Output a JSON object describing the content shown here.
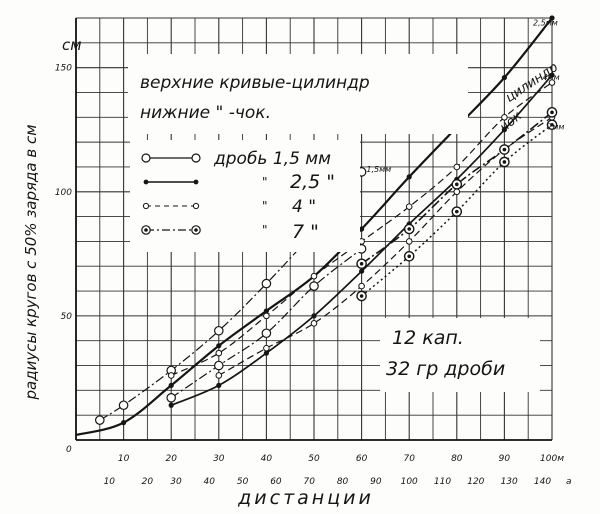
{
  "chart_data": {
    "type": "line",
    "title": "",
    "ylabel": "радиусы кругов с 50% заряда в см",
    "y_unit": "см",
    "xlabel": "дистанции",
    "x_unit_top": "м",
    "x_unit_bottom": "а",
    "origin_label": "0",
    "xlim": [
      0,
      100
    ],
    "ylim": [
      0,
      170
    ],
    "grid": true,
    "legend_position": "upper-left",
    "x_ticks_top": [
      10,
      20,
      30,
      40,
      50,
      60,
      70,
      80,
      90,
      100
    ],
    "x_ticks_top_labels": [
      "10",
      "20",
      "30",
      "40",
      "50",
      "60",
      "70",
      "80",
      "90",
      "100м"
    ],
    "x_ticks_bottom": [
      {
        "x": 7,
        "label": "10"
      },
      {
        "x": 15,
        "label": "20"
      },
      {
        "x": 21,
        "label": "30"
      },
      {
        "x": 28,
        "label": "40"
      },
      {
        "x": 35,
        "label": "50"
      },
      {
        "x": 42,
        "label": "60"
      },
      {
        "x": 49,
        "label": "70"
      },
      {
        "x": 56,
        "label": "80"
      },
      {
        "x": 63,
        "label": "90"
      },
      {
        "x": 70,
        "label": "100"
      },
      {
        "x": 77,
        "label": "110"
      },
      {
        "x": 84,
        "label": "120"
      },
      {
        "x": 91,
        "label": "130"
      },
      {
        "x": 98,
        "label": "140"
      }
    ],
    "y_ticks": [
      50,
      100,
      150
    ],
    "y_ticks_labels": [
      "50",
      "100",
      "150"
    ],
    "annotation_header": [
      "верхние кривые-цилиндр",
      "нижние      \"      -чок."
    ],
    "legend": [
      {
        "label": "дробь 1,5 мм",
        "marker": "open-circle"
      },
      {
        "label": "2,5 \"",
        "marker": "filled-dot",
        "prefix": "\""
      },
      {
        "label": "4 \"",
        "marker": "small-open-circle",
        "prefix": "\""
      },
      {
        "label": "7 \"",
        "marker": "double-circle",
        "prefix": "\""
      }
    ],
    "annotation_box": [
      "12 кап.",
      "32 гр дроби"
    ],
    "curve_labels": [
      {
        "text": "цилиндр",
        "x": 91,
        "y": 136,
        "rotate": -34
      },
      {
        "text": "чок",
        "x": 90,
        "y": 124,
        "rotate": -40
      },
      {
        "text": "2,5мм",
        "x": 96,
        "y": 167
      },
      {
        "text": "4мм",
        "x": 98,
        "y": 145
      },
      {
        "text": "7мм",
        "x": 99,
        "y": 125
      },
      {
        "text": "1,5мм",
        "x": 61,
        "y": 108
      }
    ],
    "series": [
      {
        "name": "2,5 мм цилиндр",
        "style": "solid-thick",
        "marker": "filled-dot",
        "x": [
          0,
          10,
          20,
          30,
          40,
          50,
          60,
          70,
          80,
          90,
          100
        ],
        "y": [
          2,
          7,
          22,
          38,
          52,
          66,
          85,
          106,
          126,
          146,
          170
        ]
      },
      {
        "name": "2,5 мм чок",
        "style": "solid",
        "marker": "filled-dot",
        "x": [
          20,
          30,
          40,
          50,
          60,
          70,
          80,
          90,
          100
        ],
        "y": [
          14,
          22,
          35,
          50,
          68,
          87,
          105,
          125,
          147
        ]
      },
      {
        "name": "1,5 мм цилиндр",
        "style": "dash-dot",
        "marker": "open-circle",
        "x": [
          5,
          10,
          20,
          30,
          40,
          50,
          60
        ],
        "y": [
          8,
          14,
          28,
          44,
          63,
          84,
          108
        ]
      },
      {
        "name": "1,5 мм чок",
        "style": "dash-dot",
        "marker": "open-circle",
        "x": [
          20,
          30,
          40,
          50,
          60
        ],
        "y": [
          17,
          30,
          43,
          62,
          77
        ]
      },
      {
        "name": "4 мм цилиндр",
        "style": "dashed",
        "marker": "small-open-circle",
        "x": [
          20,
          30,
          40,
          50,
          60,
          70,
          80,
          90,
          100
        ],
        "y": [
          26,
          35,
          50,
          66,
          80,
          94,
          110,
          130,
          144
        ]
      },
      {
        "name": "4 мм чок",
        "style": "dashed",
        "marker": "small-open-circle",
        "x": [
          30,
          40,
          50,
          60,
          70,
          80,
          90,
          100
        ],
        "y": [
          26,
          37,
          47,
          62,
          80,
          100,
          117,
          130
        ]
      },
      {
        "name": "7 мм цилиндр",
        "style": "dash-dot-heavy",
        "marker": "double-circle",
        "x": [
          60,
          70,
          80,
          90,
          100
        ],
        "y": [
          71,
          85,
          103,
          117,
          132
        ]
      },
      {
        "name": "7 мм чок",
        "style": "dotted",
        "marker": "double-circle",
        "x": [
          60,
          70,
          80,
          90,
          100
        ],
        "y": [
          58,
          74,
          92,
          112,
          127
        ]
      }
    ]
  }
}
